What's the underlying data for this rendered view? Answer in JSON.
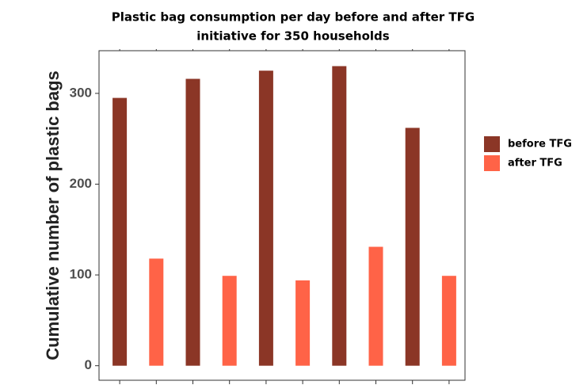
{
  "chart_data": {
    "type": "bar",
    "title": [
      "Plastic bag consumption per day before and after TFG",
      "initiative for 350 households"
    ],
    "y_label": "Cumulative number of plastic bags",
    "categories": [
      null,
      null,
      null,
      null,
      null,
      null,
      null,
      null,
      null,
      null
    ],
    "series": [
      {
        "name": "before TFG",
        "color": "#8b3626",
        "values": [
          295,
          null,
          316,
          null,
          325,
          null,
          330,
          null,
          262,
          null
        ]
      },
      {
        "name": "after TFG",
        "color": "#ff6347",
        "values": [
          null,
          118,
          null,
          99,
          null,
          94,
          null,
          131,
          null,
          99
        ]
      }
    ],
    "ylim": [
      -16,
      347
    ],
    "yticks": [
      0,
      100,
      200,
      300
    ],
    "grid": false,
    "legend": "right"
  }
}
